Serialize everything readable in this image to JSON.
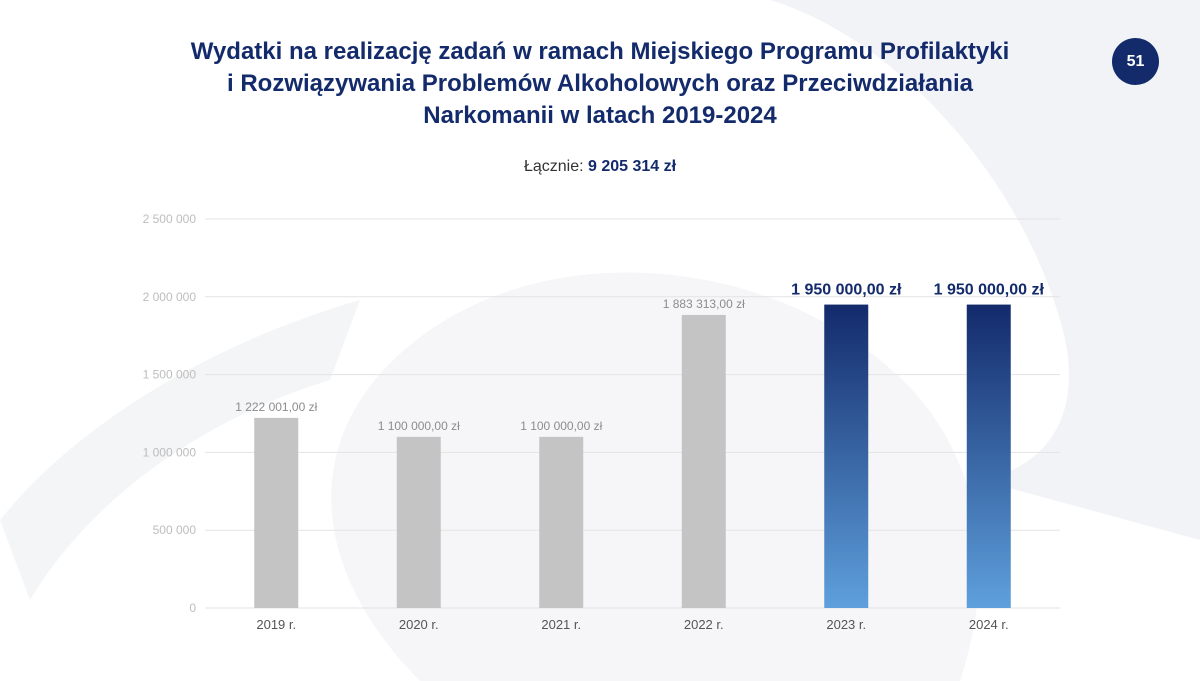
{
  "page_number": "51",
  "title_lines": [
    "Wydatki na realizację zadań w ramach Miejskiego Programu Profilaktyki",
    "i Rozwiązywania Problemów Alkoholowych oraz Przeciwdziałania",
    "Narkomanii w latach 2019-2024"
  ],
  "total": {
    "label": "Łącznie:",
    "value": "9 205 314 zł"
  },
  "colors": {
    "brand": "#132a6b",
    "bar_grey": "#c4c4c4",
    "gradient_top": "#132a6b",
    "gradient_bottom": "#5ea0dc",
    "grid": "#e3e3e3",
    "tick_text": "#bdbdbd"
  },
  "chart_data": {
    "type": "bar",
    "categories": [
      "2019 r.",
      "2020 r.",
      "2021 r.",
      "2022 r.",
      "2023 r.",
      "2024 r."
    ],
    "values": [
      1222001,
      1100000,
      1100000,
      1883313,
      1950000,
      1950000
    ],
    "data_labels": [
      "1 222 001,00 zł",
      "1 100 000,00 zł",
      "1 100 000,00 zł",
      "1 883 313,00 zł",
      "1 950 000,00 zł",
      "1 950 000,00 zł"
    ],
    "highlighted": [
      false,
      false,
      false,
      false,
      true,
      true
    ],
    "ylim": [
      0,
      2500000
    ],
    "yticks": [
      0,
      500000,
      1000000,
      1500000,
      2000000,
      2500000
    ],
    "ytick_labels": [
      "0",
      "500 000",
      "1 000 000",
      "1 500 000",
      "2 000 000",
      "2 500 000"
    ],
    "grid": true,
    "legend": "none"
  }
}
